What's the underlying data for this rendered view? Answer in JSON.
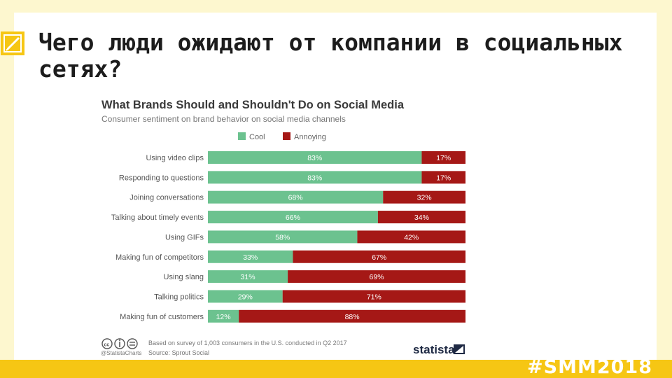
{
  "slide": {
    "title": "Чего люди ожидают от компании в социальных сетях?",
    "hashtag": "#SMM2018"
  },
  "colors": {
    "background": "#fdf7cf",
    "footer": "#f6c614",
    "cool": "#6cc28f",
    "annoying": "#a51816",
    "title": "#1c1c1c"
  },
  "chart_data": {
    "type": "bar",
    "stacked": true,
    "orientation": "horizontal",
    "title": "What Brands Should and Shouldn't Do on Social Media",
    "subtitle": "Consumer sentiment on brand behavior on social media channels",
    "legend_position": "top",
    "categories": [
      "Using video clips",
      "Responding to questions",
      "Joining conversations",
      "Talking about timely events",
      "Using GIFs",
      "Making fun of competitors",
      "Using slang",
      "Talking politics",
      "Making fun of customers"
    ],
    "series": [
      {
        "name": "Cool",
        "color": "#6cc28f",
        "values": [
          83,
          83,
          68,
          66,
          58,
          33,
          31,
          29,
          12
        ]
      },
      {
        "name": "Annoying",
        "color": "#a51816",
        "values": [
          17,
          17,
          32,
          34,
          42,
          67,
          69,
          71,
          88
        ]
      }
    ],
    "value_suffix": "%",
    "xlim": [
      0,
      100
    ],
    "footnote": "Based on survey of 1,003 consumers in the U.S. conducted in Q2 2017",
    "source": "Source: Sprout Social",
    "credit": "@StatistaCharts",
    "brand": "statista",
    "license_icons": [
      "cc-icon",
      "info-icon",
      "equals-icon"
    ]
  }
}
